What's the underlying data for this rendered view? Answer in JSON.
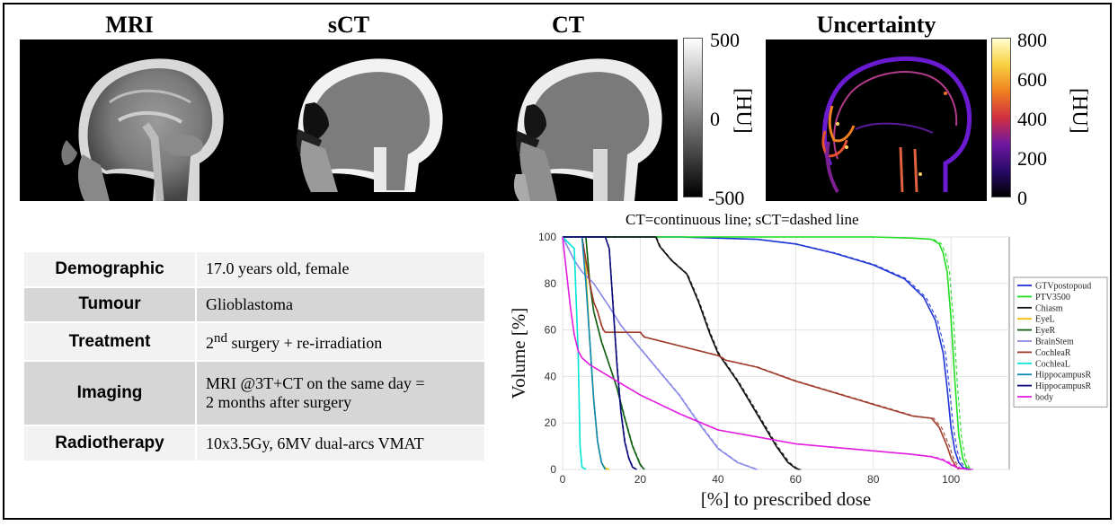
{
  "figure": {
    "panels": [
      {
        "id": "mri",
        "title": "MRI"
      },
      {
        "id": "sct",
        "title": "sCT"
      },
      {
        "id": "ct",
        "title": "CT"
      },
      {
        "id": "unc",
        "title": "Uncertainty"
      }
    ],
    "colorbar_hu": {
      "ticks": [
        "500",
        "0",
        "-500"
      ],
      "unit": "[HU]"
    },
    "colorbar_unc": {
      "ticks": [
        "800",
        "600",
        "400",
        "200",
        "0"
      ],
      "unit": "[HU]"
    }
  },
  "patient_table": [
    {
      "label": "Demographic",
      "value": "17.0 years old, female"
    },
    {
      "label": "Tumour",
      "value": "Glioblastoma"
    },
    {
      "label": "Treatment",
      "value_main": "2",
      "value_sup": "nd",
      "value_rest": " surgery + re-irradiation"
    },
    {
      "label": "Imaging",
      "value_line1": "MRI @3T+CT on the same day =",
      "value_line2": "2 months after surgery"
    },
    {
      "label": "Radiotherapy",
      "value": "10x3.5Gy, 6MV dual-arcs VMAT"
    }
  ],
  "chart_data": {
    "type": "line",
    "caption": "CT=continuous line; sCT=dashed line",
    "xlabel": "[%] to prescribed dose",
    "ylabel": "Volume [%]",
    "xlim": [
      0,
      115
    ],
    "ylim": [
      0,
      100
    ],
    "xticks": [
      0,
      20,
      40,
      60,
      80,
      100
    ],
    "yticks": [
      0,
      20,
      40,
      60,
      80,
      100
    ],
    "grid": true,
    "legend_position": "right",
    "series": [
      {
        "name": "GTVpostopoud",
        "color": "#1f35d6",
        "x": [
          0,
          20,
          30,
          50,
          60,
          70,
          80,
          88,
          93,
          96,
          98,
          99,
          100,
          101,
          102,
          103,
          104,
          105
        ],
        "y": [
          100,
          100,
          100,
          99,
          97,
          93,
          88,
          82,
          74,
          64,
          50,
          35,
          18,
          8,
          3,
          1,
          0,
          0
        ]
      },
      {
        "name": "PTV3500",
        "color": "#22dd22",
        "x": [
          0,
          60,
          80,
          90,
          95,
          97,
          98,
          99,
          100,
          101,
          102,
          103,
          104,
          105
        ],
        "y": [
          100,
          100,
          100,
          99.5,
          99,
          97,
          93,
          85,
          65,
          38,
          15,
          5,
          1,
          0
        ]
      },
      {
        "name": "Chiasm",
        "color": "#111111",
        "x": [
          0,
          24,
          25,
          28,
          32,
          35,
          38,
          40,
          45,
          50,
          55,
          58,
          60,
          61
        ],
        "y": [
          100,
          100,
          96,
          90,
          84,
          72,
          58,
          50,
          38,
          24,
          10,
          3,
          0.5,
          0
        ]
      },
      {
        "name": "EyeL",
        "color": "#f0c000",
        "x": [
          0,
          5,
          6,
          7,
          8,
          9,
          10,
          11,
          12
        ],
        "y": [
          100,
          100,
          85,
          55,
          30,
          12,
          3,
          0.5,
          0
        ]
      },
      {
        "name": "EyeR",
        "color": "#0f5e0f",
        "x": [
          0,
          6,
          7,
          8,
          10,
          12,
          14,
          16,
          18,
          20,
          21
        ],
        "y": [
          100,
          100,
          80,
          68,
          55,
          45,
          35,
          22,
          10,
          2,
          0
        ]
      },
      {
        "name": "BrainStem",
        "color": "#8a8ae8",
        "x": [
          0,
          3,
          5,
          8,
          12,
          15,
          18,
          22,
          25,
          30,
          35,
          40,
          45,
          50
        ],
        "y": [
          100,
          90,
          85,
          80,
          70,
          62,
          56,
          48,
          42,
          32,
          20,
          9,
          3,
          0
        ]
      },
      {
        "name": "CochleaR",
        "color": "#9e3a2a",
        "x": [
          0,
          5,
          6,
          7,
          8,
          9,
          10,
          10.5,
          11,
          20,
          21,
          40,
          42,
          50,
          60,
          70,
          80,
          90,
          95,
          97,
          99,
          100,
          101,
          102
        ],
        "y": [
          100,
          100,
          90,
          80,
          72,
          68,
          62,
          60,
          59,
          59,
          57,
          49,
          47,
          44,
          38,
          33,
          28,
          23,
          22,
          18,
          10,
          5,
          2,
          0
        ]
      },
      {
        "name": "CochleaL",
        "color": "#00e5d8",
        "x": [
          0,
          3,
          4,
          4.5,
          5,
          6
        ],
        "y": [
          100,
          95,
          50,
          10,
          1,
          0
        ]
      },
      {
        "name": "HippocampusR",
        "color": "#0a8ab5",
        "x": [
          0,
          5,
          6,
          7,
          8,
          9,
          10,
          11
        ],
        "y": [
          100,
          100,
          80,
          55,
          30,
          12,
          3,
          0
        ]
      },
      {
        "name": "HippocampusR",
        "color": "#0a0a7a",
        "x": [
          0,
          11,
          12,
          13,
          14,
          15,
          16,
          17,
          18,
          19
        ],
        "y": [
          100,
          100,
          95,
          70,
          45,
          25,
          12,
          5,
          1,
          0
        ]
      },
      {
        "name": "body",
        "color": "#e21fe0",
        "x": [
          0,
          1,
          2,
          3,
          4,
          5,
          7,
          10,
          15,
          20,
          30,
          40,
          50,
          60,
          70,
          80,
          90,
          95,
          98,
          100,
          102,
          105
        ],
        "y": [
          100,
          85,
          70,
          58,
          51,
          48,
          45,
          42,
          37,
          32,
          24,
          17,
          14,
          11,
          9.5,
          8,
          6.5,
          5.5,
          4,
          2,
          0.5,
          0
        ]
      }
    ]
  }
}
